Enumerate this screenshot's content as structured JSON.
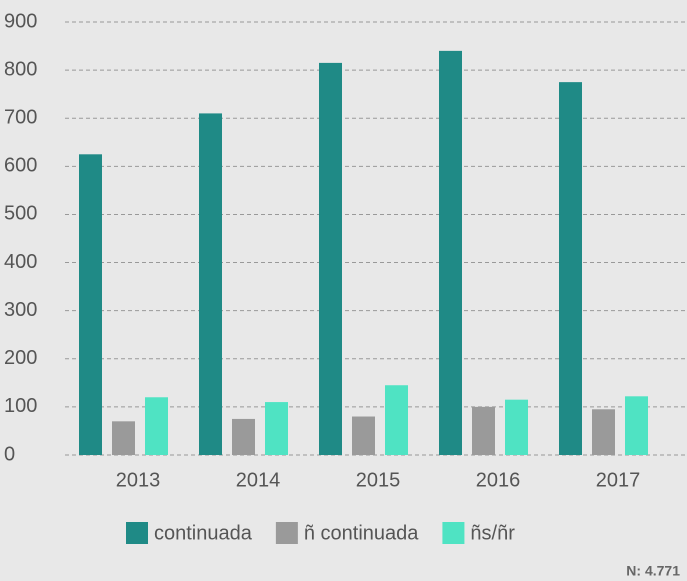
{
  "chart_data": {
    "type": "bar",
    "categories": [
      "2013",
      "2014",
      "2015",
      "2016",
      "2017"
    ],
    "series": [
      {
        "name": "continuada",
        "color": "#1f8a86",
        "values": [
          625,
          710,
          815,
          840,
          775
        ]
      },
      {
        "name": "ñ continuada",
        "color": "#9a9a9a",
        "values": [
          70,
          75,
          80,
          100,
          95
        ]
      },
      {
        "name": "ñs/ñr",
        "color": "#4fe3c3",
        "values": [
          120,
          110,
          145,
          115,
          122
        ]
      }
    ],
    "ylim": [
      0,
      900
    ],
    "yticks": [
      0,
      100,
      200,
      300,
      400,
      500,
      600,
      700,
      800,
      900
    ],
    "grid": true,
    "annotation": "N: 4.771"
  }
}
